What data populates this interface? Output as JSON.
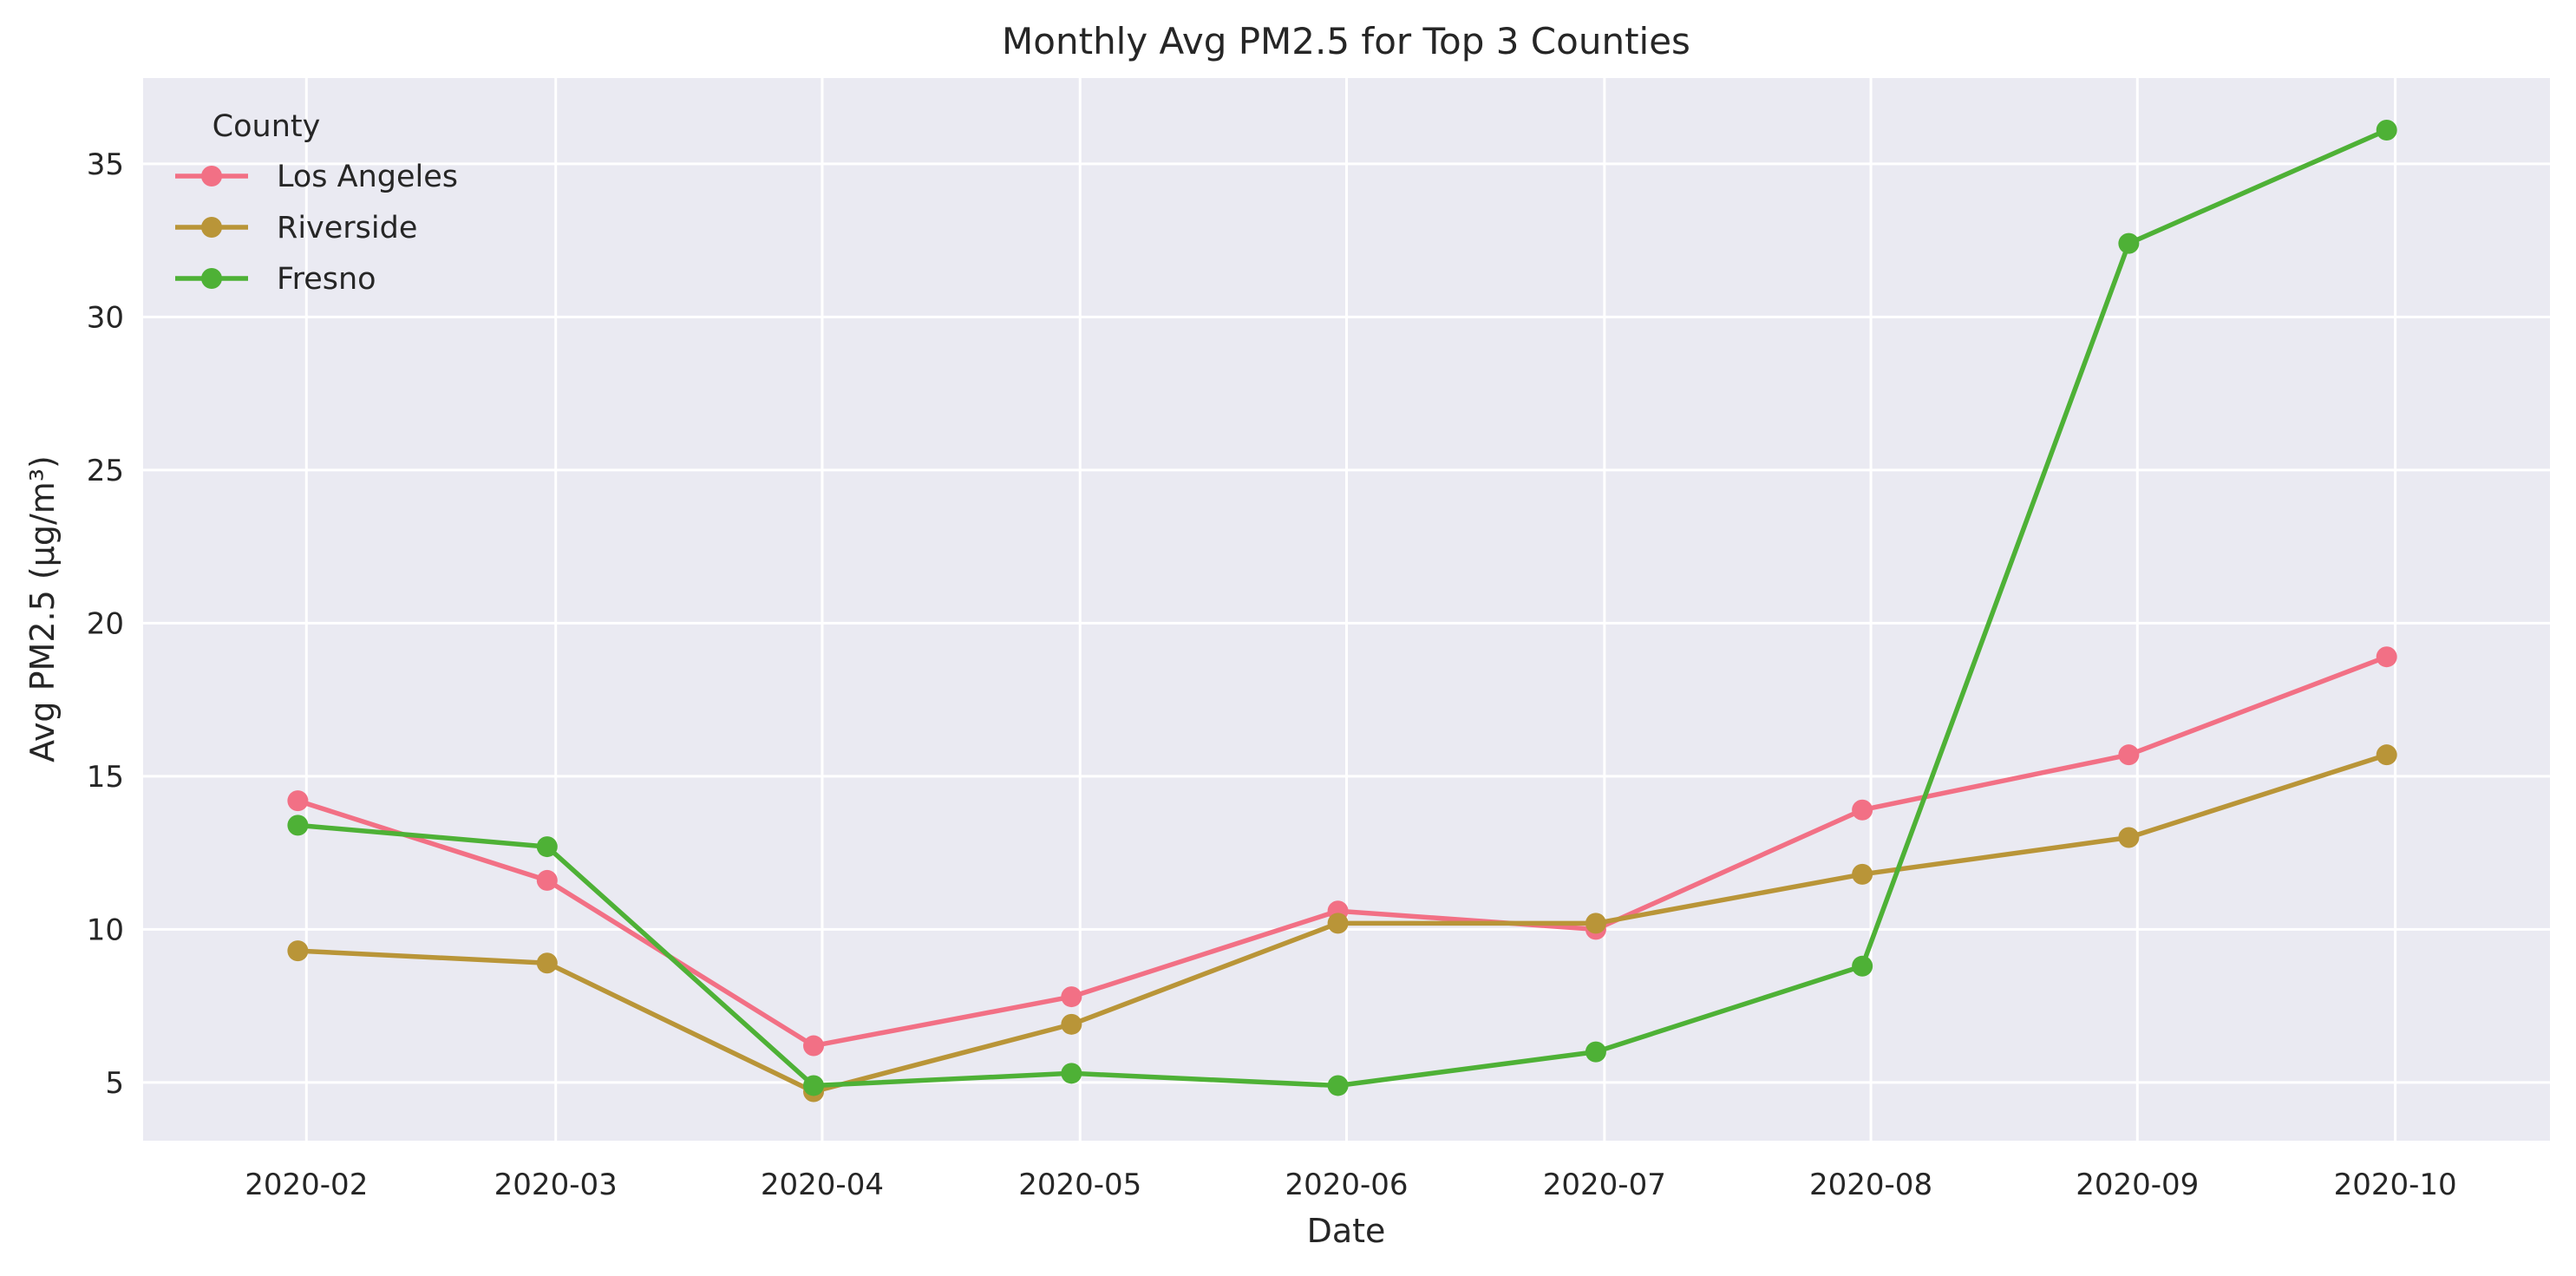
{
  "chart_data": {
    "type": "line",
    "title": "Monthly Avg PM2.5 for Top 3 Counties",
    "xlabel": "Date",
    "ylabel": "Avg PM2.5 (µg/m³)",
    "x": [
      "2020-01-31",
      "2020-02-29",
      "2020-03-31",
      "2020-04-30",
      "2020-05-31",
      "2020-06-30",
      "2020-07-31",
      "2020-08-31",
      "2020-09-30"
    ],
    "xticks": [
      "2020-02-01",
      "2020-03-01",
      "2020-04-01",
      "2020-05-01",
      "2020-06-01",
      "2020-07-01",
      "2020-08-01",
      "2020-09-01",
      "2020-10-01"
    ],
    "xtick_labels": [
      "2020-02",
      "2020-03",
      "2020-04",
      "2020-05",
      "2020-06",
      "2020-07",
      "2020-08",
      "2020-09",
      "2020-10"
    ],
    "xlim": [
      "2020-01-13",
      "2020-10-19"
    ],
    "ylim": [
      3.1,
      37.8
    ],
    "yticks": [
      5,
      10,
      15,
      20,
      25,
      30,
      35
    ],
    "grid": true,
    "legend": {
      "title": "County",
      "placement": "top-left"
    },
    "series": [
      {
        "name": "Los Angeles",
        "color": "#f27085",
        "values": [
          14.2,
          11.6,
          6.2,
          7.8,
          10.6,
          10.0,
          13.9,
          15.7,
          18.9
        ]
      },
      {
        "name": "Riverside",
        "color": "#b99538",
        "values": [
          9.3,
          8.9,
          4.7,
          6.9,
          10.2,
          10.2,
          11.8,
          13.0,
          15.7
        ]
      },
      {
        "name": "Fresno",
        "color": "#4eb136",
        "values": [
          13.4,
          12.7,
          4.9,
          5.3,
          4.9,
          6.0,
          8.8,
          32.4,
          36.1
        ]
      }
    ],
    "colors": {
      "plot_background": "#eaeaf2",
      "grid": "#ffffff",
      "text": "#262626"
    }
  }
}
